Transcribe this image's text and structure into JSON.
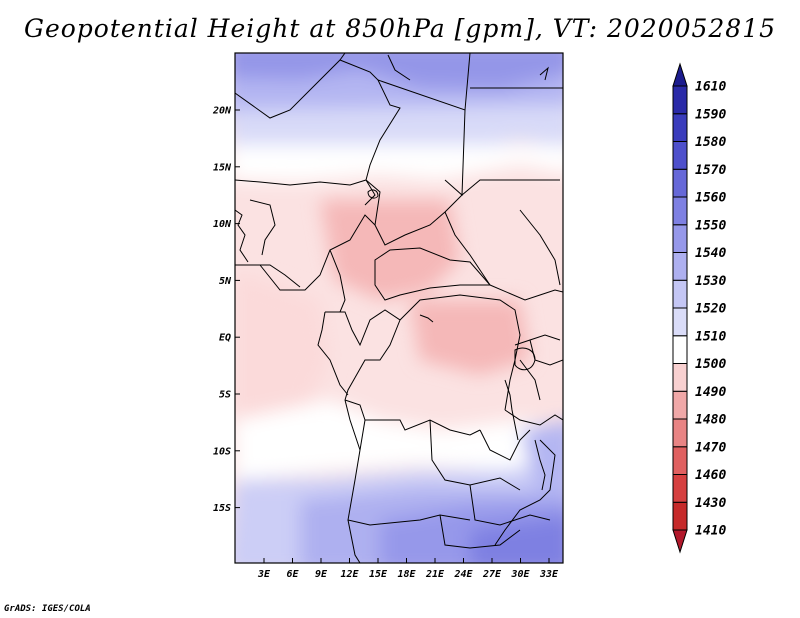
{
  "title": "Geopotential Height at 850hPa [gpm], VT: 2020052815",
  "credit": "GrADS: IGES/COLA",
  "map": {
    "lat_ticks": [
      "20N",
      "15N",
      "10N",
      "5N",
      "EQ",
      "5S",
      "10S",
      "15S"
    ],
    "lon_ticks": [
      "3E",
      "6E",
      "9E",
      "12E",
      "15E",
      "18E",
      "21E",
      "24E",
      "27E",
      "30E",
      "33E"
    ]
  },
  "colorbar": {
    "levels": [
      "1410",
      "1430",
      "1460",
      "1470",
      "1480",
      "1490",
      "1500",
      "1510",
      "1520",
      "1530",
      "1540",
      "1550",
      "1560",
      "1570",
      "1580",
      "1590",
      "1610"
    ],
    "colors": [
      "#b2182b",
      "#c62a2a",
      "#d64040",
      "#e06060",
      "#e88484",
      "#f0a8a8",
      "#f8d0d0",
      "#ffffff",
      "#dadcf8",
      "#c4c6f4",
      "#aeb0f0",
      "#9698ea",
      "#7e80e2",
      "#6668d8",
      "#4e50cc",
      "#3a3cbc",
      "#2a2aa8",
      "#1c1c8e"
    ]
  }
}
